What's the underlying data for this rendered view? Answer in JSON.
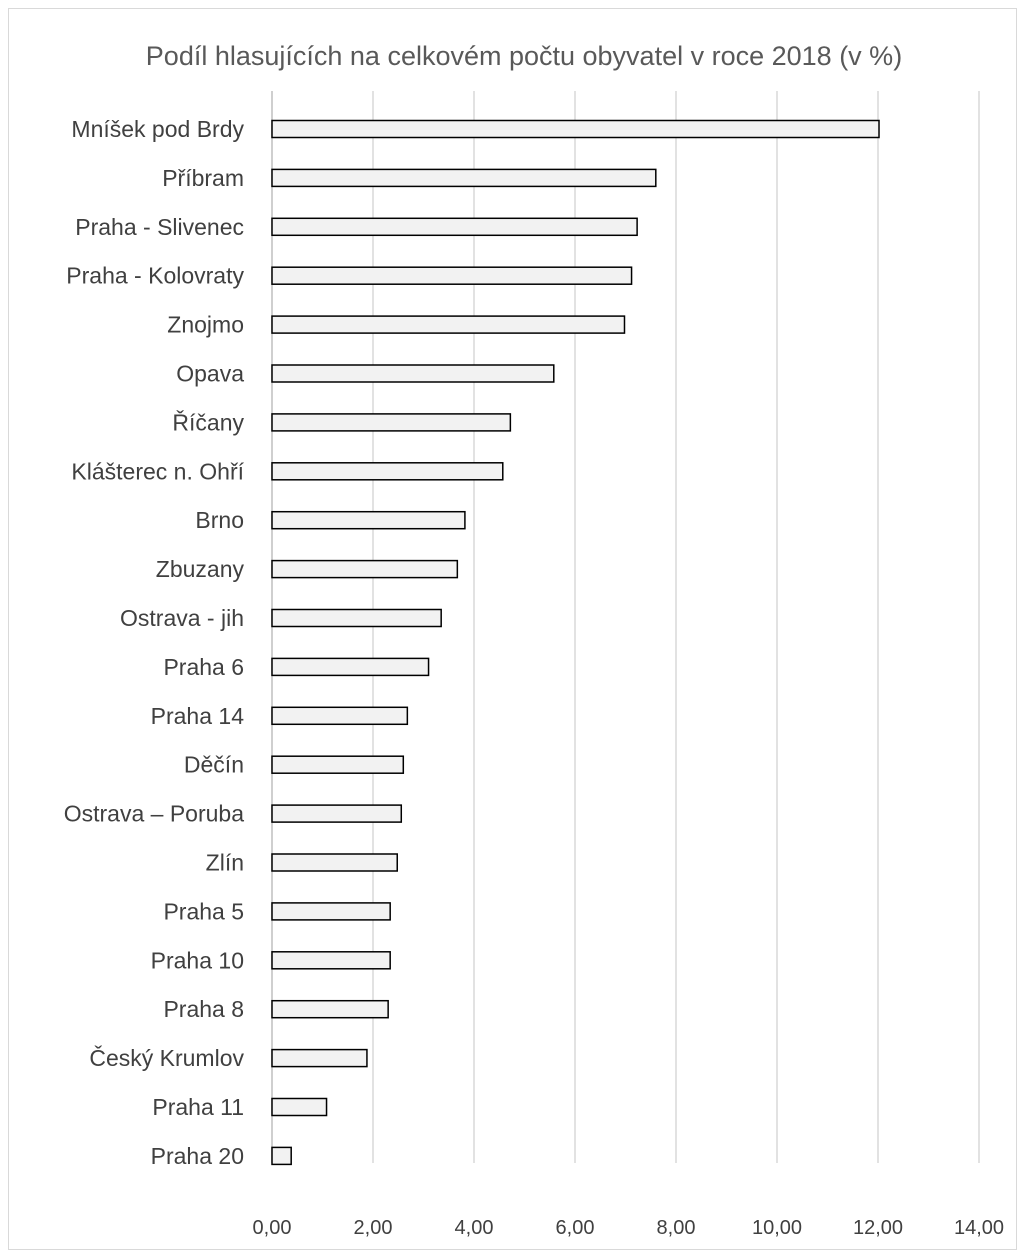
{
  "chart_data": {
    "type": "bar",
    "orientation": "horizontal",
    "title": "Podíl hlasujících na celkovém počtu obyvatel v roce 2018 (v %)",
    "xlabel": "",
    "ylabel": "",
    "categories": [
      "Mníšek pod Brdy",
      "Příbram",
      "Praha - Slivenec",
      "Praha - Kolovraty",
      "Znojmo",
      "Opava",
      "Říčany",
      "Klášterec n. Ohří",
      "Brno",
      "Zbuzany",
      "Ostrava - jih",
      "Praha 6",
      "Praha 14",
      "Děčín",
      "Ostrava – Poruba",
      "Zlín",
      "Praha 5",
      "Praha 10",
      "Praha 8",
      "Český Krumlov",
      "Praha 11",
      "Praha 20"
    ],
    "values": [
      12.02,
      7.6,
      7.23,
      7.12,
      6.98,
      5.58,
      4.72,
      4.57,
      3.82,
      3.67,
      3.35,
      3.1,
      2.68,
      2.6,
      2.56,
      2.48,
      2.34,
      2.34,
      2.3,
      1.88,
      1.08,
      0.38
    ],
    "xlim": [
      0,
      14
    ],
    "xticks": [
      "0,00",
      "2,00",
      "4,00",
      "6,00",
      "8,00",
      "10,00",
      "12,00",
      "14,00"
    ],
    "grid": true,
    "legend": "none",
    "colors": {
      "bar_fill": "#f2f2f2",
      "bar_stroke": "#000000",
      "gridline": "#d9d9d9",
      "axis": "#bfbfbf",
      "title": "#595959",
      "label": "#404040"
    }
  }
}
